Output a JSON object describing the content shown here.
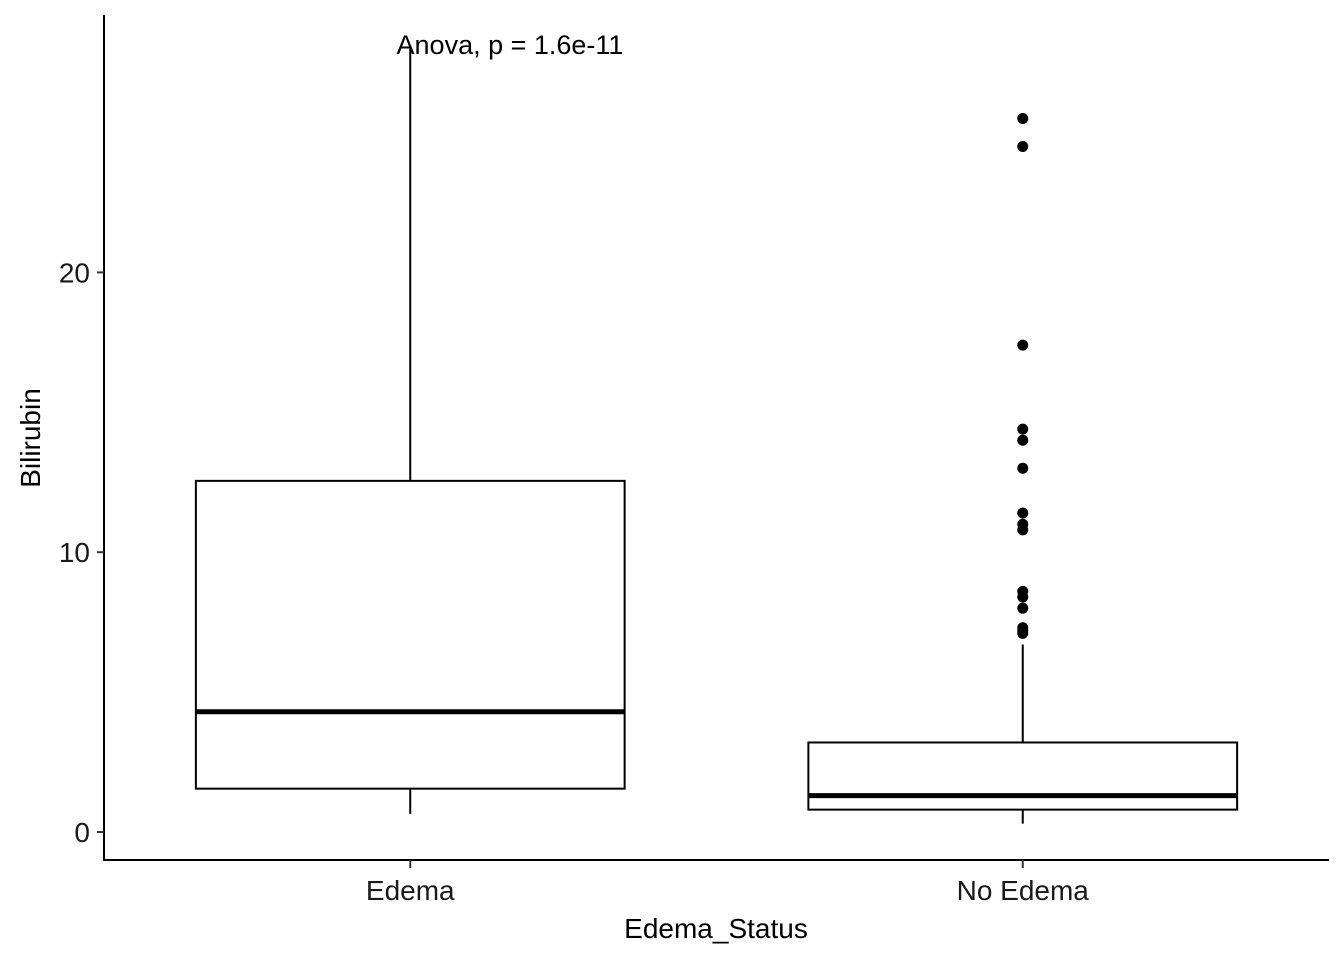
{
  "chart_data": {
    "type": "boxplot",
    "title": "",
    "xlabel": "Edema_Status",
    "ylabel": "Bilirubin",
    "ylim": [
      -1.0,
      29.2
    ],
    "yticks": [
      0,
      10,
      20
    ],
    "grid": false,
    "legend": "none",
    "annotation": "Anova, p = 1.6e-11",
    "categories": [
      "Edema",
      "No Edema"
    ],
    "boxes": [
      {
        "category": "Edema",
        "whisker_low": 0.65,
        "q1": 1.55,
        "median": 4.3,
        "q3": 12.55,
        "whisker_high": 28.0,
        "outliers": []
      },
      {
        "category": "No Edema",
        "whisker_low": 0.3,
        "q1": 0.8,
        "median": 1.3,
        "q3": 3.2,
        "whisker_high": 6.7,
        "outliers": [
          25.5,
          24.5,
          17.4,
          14.4,
          14.0,
          13.0,
          11.4,
          11.0,
          10.8,
          8.6,
          8.4,
          8.0,
          7.3,
          7.2,
          7.1
        ]
      }
    ],
    "colors": {
      "line": "#000000",
      "fill": "#ffffff"
    }
  }
}
